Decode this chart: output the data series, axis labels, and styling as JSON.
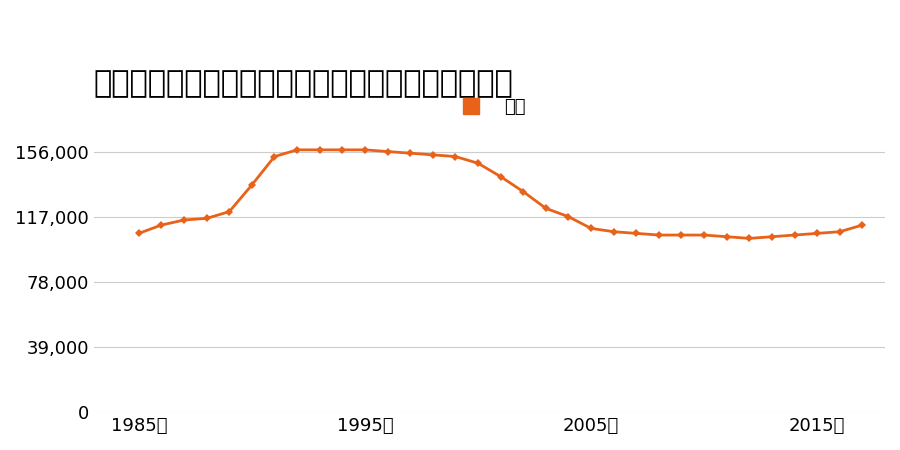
{
  "title": "福岡県福岡市早良区原１丁目２５７番８の地価推移",
  "legend_label": "価格",
  "line_color": "#e8621a",
  "marker_color": "#e8621a",
  "background_color": "#ffffff",
  "years": [
    1985,
    1986,
    1987,
    1988,
    1989,
    1990,
    1991,
    1992,
    1993,
    1994,
    1995,
    1996,
    1997,
    1998,
    1999,
    2000,
    2001,
    2002,
    2003,
    2004,
    2005,
    2006,
    2007,
    2008,
    2009,
    2010,
    2011,
    2012,
    2013,
    2014,
    2015,
    2016,
    2017
  ],
  "values": [
    107000,
    112000,
    115000,
    116000,
    120000,
    136000,
    153000,
    157000,
    157000,
    157000,
    157000,
    156000,
    155000,
    154000,
    153000,
    149000,
    141000,
    132000,
    122000,
    117000,
    110000,
    108000,
    107000,
    106000,
    106000,
    106000,
    105000,
    104000,
    105000,
    106000,
    107000,
    108000,
    112000
  ],
  "yticks": [
    0,
    39000,
    78000,
    117000,
    156000
  ],
  "xticks": [
    1985,
    1995,
    2005,
    2015
  ],
  "xlim": [
    1983,
    2018
  ],
  "ylim": [
    0,
    175000
  ],
  "grid_color": "#cccccc",
  "title_fontsize": 22,
  "tick_fontsize": 13,
  "legend_fontsize": 13
}
